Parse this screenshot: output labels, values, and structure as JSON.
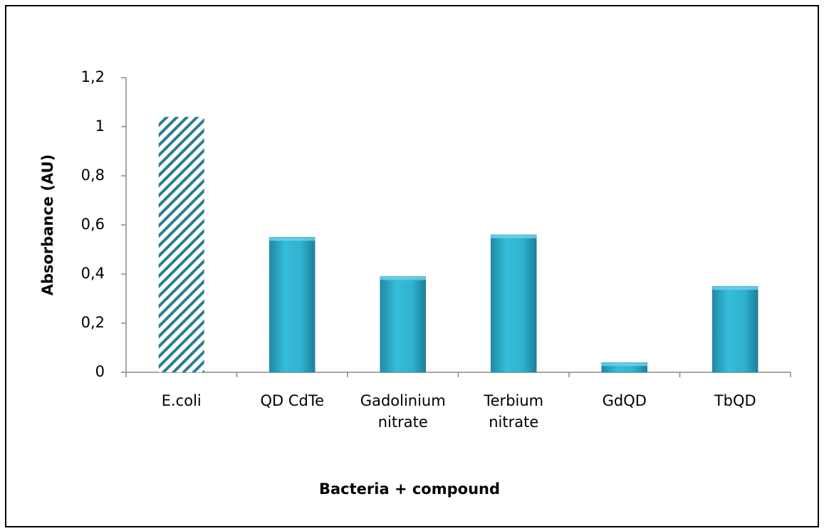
{
  "chart_data": {
    "type": "bar",
    "x_label": "Bacteria + compound",
    "y_label": "Absorbance (AU)",
    "categories": [
      "E.coli",
      "QD CdTe",
      "Gadolinium nitrate",
      "Terbium nitrate",
      "GdQD",
      "TbQD"
    ],
    "values": [
      1.04,
      0.55,
      0.39,
      0.56,
      0.04,
      0.35
    ],
    "color": "#2fb2d0",
    "patterns": [
      "hatch",
      "solid",
      "solid",
      "solid",
      "solid",
      "solid"
    ],
    "ylim": [
      0,
      1.2
    ],
    "yticks": [
      0,
      {
        "value": 0.2,
        "label": "0,2"
      },
      {
        "value": 0.4,
        "label": "0,4"
      },
      {
        "value": 0.6,
        "label": "0,6"
      },
      {
        "value": 0.8,
        "label": "0,8"
      },
      1,
      {
        "value": 1.2,
        "label": "1,2"
      }
    ],
    "grid": false
  }
}
